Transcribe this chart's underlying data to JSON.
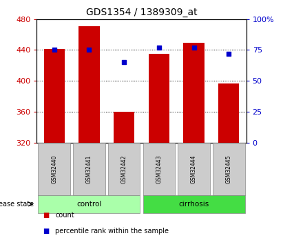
{
  "title": "GDS1354 / 1389309_at",
  "samples": [
    "GSM32440",
    "GSM32441",
    "GSM32442",
    "GSM32443",
    "GSM32444",
    "GSM32445"
  ],
  "count_values": [
    441,
    471,
    360,
    435,
    449,
    397
  ],
  "percentile_values": [
    75,
    75,
    65,
    77,
    77,
    72
  ],
  "ylim_left": [
    320,
    480
  ],
  "ylim_right": [
    0,
    100
  ],
  "yticks_left": [
    320,
    360,
    400,
    440,
    480
  ],
  "yticks_right": [
    0,
    25,
    50,
    75,
    100
  ],
  "ytick_labels_right": [
    "0",
    "25",
    "50",
    "75",
    "100%"
  ],
  "bar_color": "#cc0000",
  "square_color": "#0000cc",
  "bar_bottom": 320,
  "group_control_color": "#aaffaa",
  "group_cirrhosis_color": "#44dd44",
  "sample_box_color": "#cccccc",
  "tick_color_left": "#cc0000",
  "tick_color_right": "#0000cc",
  "bar_width": 0.6,
  "fig_width": 4.11,
  "fig_height": 3.45,
  "title_fontsize": 10
}
